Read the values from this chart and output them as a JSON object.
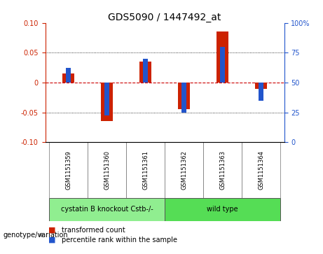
{
  "title": "GDS5090 / 1447492_at",
  "samples": [
    "GSM1151359",
    "GSM1151360",
    "GSM1151361",
    "GSM1151362",
    "GSM1151363",
    "GSM1151364"
  ],
  "red_values": [
    0.015,
    -0.065,
    0.035,
    -0.045,
    0.085,
    -0.01
  ],
  "blue_values": [
    0.025,
    -0.055,
    0.04,
    -0.05,
    0.06,
    -0.03
  ],
  "ylim": [
    -0.1,
    0.1
  ],
  "yticks_left": [
    -0.1,
    -0.05,
    0.0,
    0.05,
    0.1
  ],
  "yticks_right": [
    0,
    25,
    50,
    75,
    100
  ],
  "yticks_right_pos": [
    -0.1,
    -0.05,
    0.0,
    0.05,
    0.1
  ],
  "groups": [
    {
      "label": "cystatin B knockout Cstb-/-",
      "start": 0,
      "end": 2,
      "color": "#90EE90"
    },
    {
      "label": "wild type",
      "start": 3,
      "end": 5,
      "color": "#55DD55"
    }
  ],
  "group_label": "genotype/variation",
  "legend_red": "transformed count",
  "legend_blue": "percentile rank within the sample",
  "bar_color_red": "#CC2200",
  "bar_color_blue": "#2255CC",
  "background_color": "#ffffff",
  "zero_line_color": "#CC0000",
  "bar_width": 0.3,
  "blue_bar_width": 0.12,
  "sample_box_color": "#C8C8C8",
  "title_fontsize": 10,
  "tick_fontsize": 7,
  "sample_fontsize": 6,
  "group_fontsize": 7,
  "legend_fontsize": 7,
  "group_label_fontsize": 7
}
